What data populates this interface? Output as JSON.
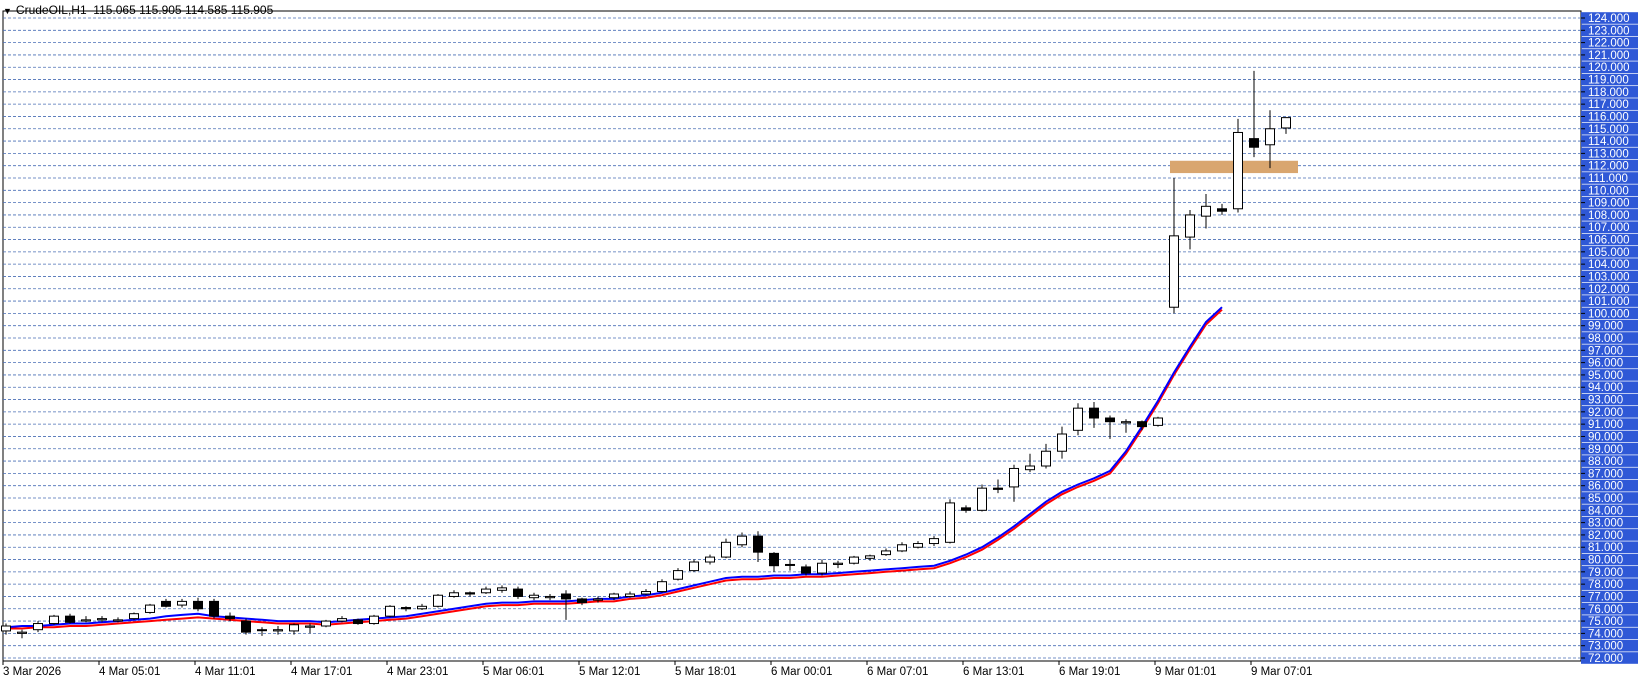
{
  "header": {
    "symbol": "CrudeOIL,H1",
    "ohlc": "115.065 115.905 114.585 115.905"
  },
  "colors": {
    "background": "#ffffff",
    "grid": "#4a6fb5",
    "axis_label_bg": "#2f58d6",
    "axis_label_text": "#ffffff",
    "ma_fast": "#0000ff",
    "ma_slow": "#ff0000",
    "zone": "#d9a66f",
    "candle_up_fill": "#ffffff",
    "candle_down_fill": "#000000"
  },
  "chart_data": {
    "type": "candlestick",
    "ylim": [
      72,
      124
    ],
    "y_tick_labels": [
      "124.000",
      "123.000",
      "122.000",
      "121.000",
      "120.000",
      "119.000",
      "118.000",
      "117.000",
      "116.000",
      "115.000",
      "114.000",
      "113.000",
      "112.000",
      "111.000",
      "110.000",
      "109.000",
      "108.000",
      "107.000",
      "106.000",
      "105.000",
      "104.000",
      "103.000",
      "102.000",
      "101.000",
      "100.000",
      "99.000",
      "98.000",
      "97.000",
      "96.000",
      "95.000",
      "94.000",
      "93.000",
      "92.000",
      "91.000",
      "90.000",
      "89.000",
      "88.000",
      "87.000",
      "86.000",
      "85.000",
      "84.000",
      "83.000",
      "82.000",
      "81.000",
      "80.000",
      "79.000",
      "78.000",
      "77.000",
      "76.000",
      "75.000",
      "74.000",
      "73.000",
      "72.000"
    ],
    "x_tick_labels": [
      {
        "i": 0,
        "label": "3 Mar 2026"
      },
      {
        "i": 6,
        "label": "4 Mar 05:01"
      },
      {
        "i": 12,
        "label": "4 Mar 11:01"
      },
      {
        "i": 18,
        "label": "4 Mar 17:01"
      },
      {
        "i": 24,
        "label": "4 Mar 23:01"
      },
      {
        "i": 30,
        "label": "5 Mar 06:01"
      },
      {
        "i": 36,
        "label": "5 Mar 12:01"
      },
      {
        "i": 42,
        "label": "5 Mar 18:01"
      },
      {
        "i": 48,
        "label": "6 Mar 00:01"
      },
      {
        "i": 54,
        "label": "6 Mar 07:01"
      },
      {
        "i": 60,
        "label": "6 Mar 13:01"
      },
      {
        "i": 66,
        "label": "6 Mar 19:01"
      },
      {
        "i": 72,
        "label": "9 Mar 01:01"
      },
      {
        "i": 78,
        "label": "9 Mar 07:01"
      }
    ],
    "candles": [
      [
        74.2,
        74.8,
        73.9,
        74.6
      ],
      [
        74.0,
        74.3,
        73.6,
        74.1
      ],
      [
        74.3,
        75.0,
        74.1,
        74.8
      ],
      [
        74.8,
        75.5,
        74.7,
        75.4
      ],
      [
        75.4,
        75.6,
        74.8,
        74.9
      ],
      [
        75.0,
        75.4,
        74.9,
        75.1
      ],
      [
        75.1,
        75.4,
        74.9,
        75.2
      ],
      [
        75.0,
        75.3,
        74.9,
        75.1
      ],
      [
        75.2,
        75.7,
        75.1,
        75.6
      ],
      [
        75.7,
        76.4,
        75.6,
        76.3
      ],
      [
        76.6,
        76.8,
        76.1,
        76.2
      ],
      [
        76.3,
        76.8,
        76.1,
        76.6
      ],
      [
        76.6,
        76.9,
        75.8,
        76.0
      ],
      [
        76.6,
        76.8,
        75.2,
        75.4
      ],
      [
        75.4,
        75.7,
        75.0,
        75.2
      ],
      [
        75.0,
        75.2,
        73.9,
        74.1
      ],
      [
        74.3,
        74.5,
        73.8,
        74.3
      ],
      [
        74.2,
        74.6,
        73.9,
        74.3
      ],
      [
        74.2,
        74.8,
        73.9,
        74.7
      ],
      [
        74.5,
        74.8,
        74.0,
        74.6
      ],
      [
        74.6,
        75.1,
        74.5,
        75.0
      ],
      [
        75.0,
        75.4,
        74.9,
        75.2
      ],
      [
        75.1,
        75.2,
        74.7,
        74.8
      ],
      [
        74.8,
        75.5,
        74.7,
        75.4
      ],
      [
        75.4,
        76.3,
        75.3,
        76.2
      ],
      [
        76.1,
        76.2,
        75.8,
        76.0
      ],
      [
        76.0,
        76.4,
        75.9,
        76.2
      ],
      [
        76.2,
        77.2,
        76.1,
        77.1
      ],
      [
        77.0,
        77.5,
        76.9,
        77.3
      ],
      [
        77.3,
        77.4,
        77.0,
        77.2
      ],
      [
        77.3,
        77.8,
        77.2,
        77.6
      ],
      [
        77.5,
        77.9,
        77.3,
        77.7
      ],
      [
        77.6,
        77.8,
        76.8,
        77.0
      ],
      [
        76.9,
        77.3,
        76.7,
        77.1
      ],
      [
        76.9,
        77.2,
        76.7,
        77.0
      ],
      [
        77.2,
        77.5,
        75.1,
        76.8
      ],
      [
        76.8,
        76.9,
        76.3,
        76.5
      ],
      [
        76.7,
        77.0,
        76.5,
        76.8
      ],
      [
        76.9,
        77.3,
        76.7,
        77.2
      ],
      [
        77.0,
        77.4,
        76.9,
        77.2
      ],
      [
        77.2,
        77.6,
        77.1,
        77.4
      ],
      [
        77.4,
        78.4,
        77.3,
        78.2
      ],
      [
        78.4,
        79.3,
        78.3,
        79.1
      ],
      [
        79.1,
        80.0,
        79.0,
        79.8
      ],
      [
        79.8,
        80.4,
        79.6,
        80.2
      ],
      [
        80.2,
        81.7,
        80.1,
        81.4
      ],
      [
        81.2,
        82.2,
        81.0,
        81.9
      ],
      [
        81.9,
        82.3,
        79.8,
        80.6
      ],
      [
        80.5,
        80.6,
        79.0,
        79.5
      ],
      [
        79.6,
        80.0,
        79.1,
        79.6
      ],
      [
        79.4,
        79.6,
        78.7,
        78.9
      ],
      [
        78.9,
        80.0,
        78.7,
        79.7
      ],
      [
        79.6,
        79.9,
        79.3,
        79.7
      ],
      [
        79.7,
        80.3,
        79.6,
        80.2
      ],
      [
        80.1,
        80.4,
        79.9,
        80.3
      ],
      [
        80.4,
        80.9,
        80.3,
        80.7
      ],
      [
        80.7,
        81.4,
        80.6,
        81.2
      ],
      [
        81.0,
        81.5,
        80.9,
        81.3
      ],
      [
        81.3,
        81.9,
        81.1,
        81.7
      ],
      [
        81.4,
        84.9,
        81.3,
        84.6
      ],
      [
        84.2,
        84.4,
        83.8,
        84.0
      ],
      [
        84.0,
        86.1,
        83.9,
        85.8
      ],
      [
        85.8,
        86.5,
        85.4,
        85.7
      ],
      [
        85.9,
        87.7,
        84.7,
        87.4
      ],
      [
        87.3,
        88.6,
        87.1,
        87.6
      ],
      [
        87.6,
        89.4,
        87.4,
        88.8
      ],
      [
        88.8,
        90.8,
        88.2,
        90.2
      ],
      [
        90.5,
        92.7,
        90.1,
        92.3
      ],
      [
        92.3,
        92.8,
        90.7,
        91.5
      ],
      [
        91.5,
        91.7,
        89.8,
        91.2
      ],
      [
        91.1,
        91.4,
        90.3,
        91.2
      ],
      [
        91.2,
        91.3,
        90.5,
        90.8
      ],
      [
        90.9,
        91.6,
        90.8,
        91.5
      ],
      [
        100.5,
        111.0,
        100.0,
        106.3
      ],
      [
        106.2,
        108.4,
        105.2,
        108.0
      ],
      [
        107.9,
        109.7,
        106.9,
        108.7
      ],
      [
        108.5,
        108.9,
        108.0,
        108.3
      ],
      [
        108.5,
        115.8,
        108.2,
        114.7
      ],
      [
        114.2,
        119.7,
        112.7,
        113.5
      ],
      [
        113.7,
        116.5,
        111.8,
        115.0
      ],
      [
        115.065,
        115.905,
        114.585,
        115.905
      ]
    ],
    "ma_fast": [
      74.5,
      74.6,
      74.6,
      74.7,
      74.8,
      74.8,
      74.9,
      75.0,
      75.1,
      75.2,
      75.4,
      75.5,
      75.6,
      75.4,
      75.3,
      75.2,
      75.1,
      75.0,
      75.0,
      75.0,
      74.9,
      75.0,
      75.1,
      75.2,
      75.3,
      75.4,
      75.6,
      75.8,
      76.0,
      76.2,
      76.4,
      76.5,
      76.5,
      76.6,
      76.6,
      76.6,
      76.7,
      76.8,
      76.8,
      77.0,
      77.1,
      77.3,
      77.6,
      77.9,
      78.2,
      78.5,
      78.6,
      78.6,
      78.7,
      78.7,
      78.8,
      78.8,
      78.9,
      79.0,
      79.1,
      79.2,
      79.3,
      79.4,
      79.5,
      79.9,
      80.4,
      81.0,
      81.8,
      82.7,
      83.7,
      84.7,
      85.5,
      86.1,
      86.6,
      87.2,
      88.8,
      90.8,
      92.9,
      95.2,
      97.3,
      99.3,
      100.5
    ],
    "ma_slow": [
      74.4,
      74.4,
      74.5,
      74.5,
      74.6,
      74.6,
      74.7,
      74.8,
      74.9,
      75.0,
      75.1,
      75.2,
      75.3,
      75.2,
      75.1,
      75.0,
      74.9,
      74.8,
      74.8,
      74.8,
      74.7,
      74.8,
      74.9,
      75.0,
      75.1,
      75.2,
      75.4,
      75.6,
      75.8,
      76.0,
      76.2,
      76.3,
      76.3,
      76.4,
      76.4,
      76.4,
      76.5,
      76.6,
      76.6,
      76.8,
      76.9,
      77.1,
      77.4,
      77.7,
      78.0,
      78.3,
      78.4,
      78.4,
      78.5,
      78.5,
      78.6,
      78.6,
      78.7,
      78.8,
      78.9,
      79.0,
      79.1,
      79.2,
      79.3,
      79.7,
      80.2,
      80.8,
      81.6,
      82.5,
      83.5,
      84.5,
      85.3,
      85.9,
      86.4,
      87.0,
      88.6,
      90.6,
      92.7,
      95.0,
      97.1,
      99.1,
      100.3
    ],
    "zone": {
      "x_from_index": 73,
      "x_to_index": 81,
      "y_low": 111.4,
      "y_high": 112.4
    }
  }
}
